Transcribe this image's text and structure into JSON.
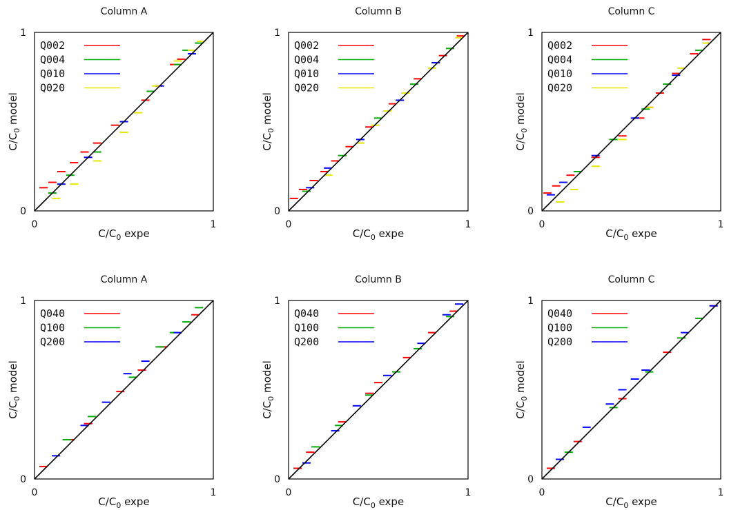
{
  "chart_data": [
    {
      "type": "scatter",
      "title": "Column A",
      "xlabel": "C/C0 expe",
      "ylabel": "C/C0 model",
      "xlim": [
        0,
        1
      ],
      "ylim": [
        0,
        1
      ],
      "xticks": [
        "0",
        "1"
      ],
      "yticks": [
        "0",
        "1"
      ],
      "grid": false,
      "legend": "top-left",
      "reference_line": "y = x",
      "series": [
        {
          "name": "Q002",
          "color": "#ff0000",
          "x": [
            0.05,
            0.1,
            0.15,
            0.22,
            0.28,
            0.35,
            0.45,
            0.62,
            0.7,
            0.78,
            0.82
          ],
          "y": [
            0.13,
            0.16,
            0.22,
            0.27,
            0.33,
            0.38,
            0.48,
            0.62,
            0.7,
            0.82,
            0.85
          ]
        },
        {
          "name": "Q004",
          "color": "#00aa00",
          "x": [
            0.1,
            0.2,
            0.35,
            0.5,
            0.65,
            0.8,
            0.85,
            0.92
          ],
          "y": [
            0.1,
            0.2,
            0.33,
            0.5,
            0.67,
            0.82,
            0.9,
            0.94
          ]
        },
        {
          "name": "Q010",
          "color": "#0000ff",
          "x": [
            0.15,
            0.3,
            0.5,
            0.7,
            0.88
          ],
          "y": [
            0.15,
            0.3,
            0.5,
            0.7,
            0.88
          ]
        },
        {
          "name": "Q020",
          "color": "#e6e600",
          "x": [
            0.12,
            0.22,
            0.35,
            0.5,
            0.58,
            0.68,
            0.8,
            0.88,
            0.93
          ],
          "y": [
            0.07,
            0.15,
            0.28,
            0.44,
            0.55,
            0.7,
            0.84,
            0.9,
            0.95
          ]
        }
      ]
    },
    {
      "type": "scatter",
      "title": "Column B",
      "xlabel": "C/C0 expe",
      "ylabel": "C/C0 model",
      "xlim": [
        0,
        1
      ],
      "ylim": [
        0,
        1
      ],
      "xticks": [
        "0",
        "1"
      ],
      "yticks": [
        "0",
        "1"
      ],
      "grid": false,
      "legend": "top-left",
      "reference_line": "y = x",
      "series": [
        {
          "name": "Q002",
          "color": "#ff0000",
          "x": [
            0.03,
            0.08,
            0.14,
            0.2,
            0.26,
            0.34,
            0.45,
            0.58,
            0.72,
            0.86,
            0.96
          ],
          "y": [
            0.07,
            0.12,
            0.17,
            0.22,
            0.28,
            0.36,
            0.47,
            0.6,
            0.74,
            0.87,
            0.98
          ]
        },
        {
          "name": "Q004",
          "color": "#00aa00",
          "x": [
            0.1,
            0.3,
            0.5,
            0.7,
            0.9
          ],
          "y": [
            0.11,
            0.31,
            0.52,
            0.71,
            0.91
          ]
        },
        {
          "name": "Q010",
          "color": "#0000ff",
          "x": [
            0.12,
            0.22,
            0.4,
            0.62,
            0.82
          ],
          "y": [
            0.13,
            0.24,
            0.4,
            0.62,
            0.83
          ]
        },
        {
          "name": "Q020",
          "color": "#e6e600",
          "x": [
            0.22,
            0.4,
            0.48,
            0.55,
            0.65,
            0.8,
            0.95
          ],
          "y": [
            0.2,
            0.38,
            0.48,
            0.56,
            0.66,
            0.8,
            0.97
          ]
        }
      ]
    },
    {
      "type": "scatter",
      "title": "Column C",
      "xlabel": "C/C0 expe",
      "ylabel": "C/C0 model",
      "xlim": [
        0,
        1
      ],
      "ylim": [
        0,
        1
      ],
      "xticks": [
        "0",
        "1"
      ],
      "yticks": [
        "0",
        "1"
      ],
      "grid": false,
      "legend": "top-left",
      "reference_line": "y = x",
      "series": [
        {
          "name": "Q002",
          "color": "#ff0000",
          "x": [
            0.03,
            0.08,
            0.16,
            0.3,
            0.45,
            0.55,
            0.6,
            0.66,
            0.75,
            0.85,
            0.92
          ],
          "y": [
            0.1,
            0.14,
            0.2,
            0.3,
            0.42,
            0.52,
            0.58,
            0.66,
            0.77,
            0.88,
            0.96
          ]
        },
        {
          "name": "Q004",
          "color": "#00aa00",
          "x": [
            0.2,
            0.4,
            0.58,
            0.7,
            0.88
          ],
          "y": [
            0.22,
            0.4,
            0.57,
            0.71,
            0.9
          ]
        },
        {
          "name": "Q010",
          "color": "#0000ff",
          "x": [
            0.05,
            0.12,
            0.3,
            0.52,
            0.75
          ],
          "y": [
            0.09,
            0.16,
            0.31,
            0.52,
            0.76
          ]
        },
        {
          "name": "Q020",
          "color": "#e6e600",
          "x": [
            0.1,
            0.18,
            0.3,
            0.45,
            0.6,
            0.78,
            0.92
          ],
          "y": [
            0.05,
            0.12,
            0.25,
            0.4,
            0.58,
            0.8,
            0.94
          ]
        }
      ]
    },
    {
      "type": "scatter",
      "title": "Column A",
      "xlabel": "C/C0 expe",
      "ylabel": "C/C0 model",
      "xlim": [
        0,
        1
      ],
      "ylim": [
        0,
        1
      ],
      "xticks": [
        "0",
        "1"
      ],
      "yticks": [
        "0",
        "1"
      ],
      "grid": false,
      "legend": "top-left",
      "reference_line": "y = x",
      "series": [
        {
          "name": "Q040",
          "color": "#ff0000",
          "x": [
            0.05,
            0.2,
            0.3,
            0.48,
            0.6,
            0.72,
            0.9
          ],
          "y": [
            0.07,
            0.22,
            0.31,
            0.49,
            0.61,
            0.74,
            0.92
          ]
        },
        {
          "name": "Q100",
          "color": "#00aa00",
          "x": [
            0.18,
            0.32,
            0.55,
            0.7,
            0.78,
            0.85,
            0.92
          ],
          "y": [
            0.22,
            0.35,
            0.57,
            0.74,
            0.82,
            0.88,
            0.96
          ]
        },
        {
          "name": "Q200",
          "color": "#0000ff",
          "x": [
            0.12,
            0.28,
            0.4,
            0.52,
            0.62,
            0.8
          ],
          "y": [
            0.13,
            0.3,
            0.43,
            0.59,
            0.66,
            0.82
          ]
        }
      ]
    },
    {
      "type": "scatter",
      "title": "Column B",
      "xlabel": "C/C0 expe",
      "ylabel": "C/C0 model",
      "xlim": [
        0,
        1
      ],
      "ylim": [
        0,
        1
      ],
      "xticks": [
        "0",
        "1"
      ],
      "yticks": [
        "0",
        "1"
      ],
      "grid": false,
      "legend": "top-left",
      "reference_line": "y = x",
      "series": [
        {
          "name": "Q040",
          "color": "#ff0000",
          "x": [
            0.05,
            0.12,
            0.3,
            0.45,
            0.5,
            0.66,
            0.8,
            0.92
          ],
          "y": [
            0.06,
            0.15,
            0.32,
            0.48,
            0.54,
            0.68,
            0.82,
            0.94
          ]
        },
        {
          "name": "Q100",
          "color": "#00aa00",
          "x": [
            0.15,
            0.28,
            0.45,
            0.6,
            0.72,
            0.9
          ],
          "y": [
            0.18,
            0.3,
            0.47,
            0.6,
            0.73,
            0.91
          ]
        },
        {
          "name": "Q200",
          "color": "#0000ff",
          "x": [
            0.1,
            0.26,
            0.38,
            0.55,
            0.74,
            0.88,
            0.95
          ],
          "y": [
            0.09,
            0.27,
            0.41,
            0.58,
            0.76,
            0.92,
            0.98
          ]
        }
      ]
    },
    {
      "type": "scatter",
      "title": "Column C",
      "xlabel": "C/C0 expe",
      "ylabel": "C/C0 model",
      "xlim": [
        0,
        1
      ],
      "ylim": [
        0,
        1
      ],
      "xticks": [
        "0",
        "1"
      ],
      "yticks": [
        "0",
        "1"
      ],
      "grid": false,
      "legend": "top-left",
      "reference_line": "y = x",
      "series": [
        {
          "name": "Q040",
          "color": "#ff0000",
          "x": [
            0.05,
            0.2,
            0.45,
            0.7,
            0.96
          ],
          "y": [
            0.06,
            0.21,
            0.45,
            0.71,
            0.97
          ]
        },
        {
          "name": "Q100",
          "color": "#00aa00",
          "x": [
            0.15,
            0.4,
            0.6,
            0.78,
            0.88
          ],
          "y": [
            0.15,
            0.4,
            0.6,
            0.79,
            0.9
          ]
        },
        {
          "name": "Q200",
          "color": "#0000ff",
          "x": [
            0.1,
            0.25,
            0.38,
            0.45,
            0.52,
            0.58,
            0.8,
            0.96
          ],
          "y": [
            0.11,
            0.29,
            0.42,
            0.5,
            0.56,
            0.61,
            0.82,
            0.97
          ]
        }
      ]
    }
  ]
}
